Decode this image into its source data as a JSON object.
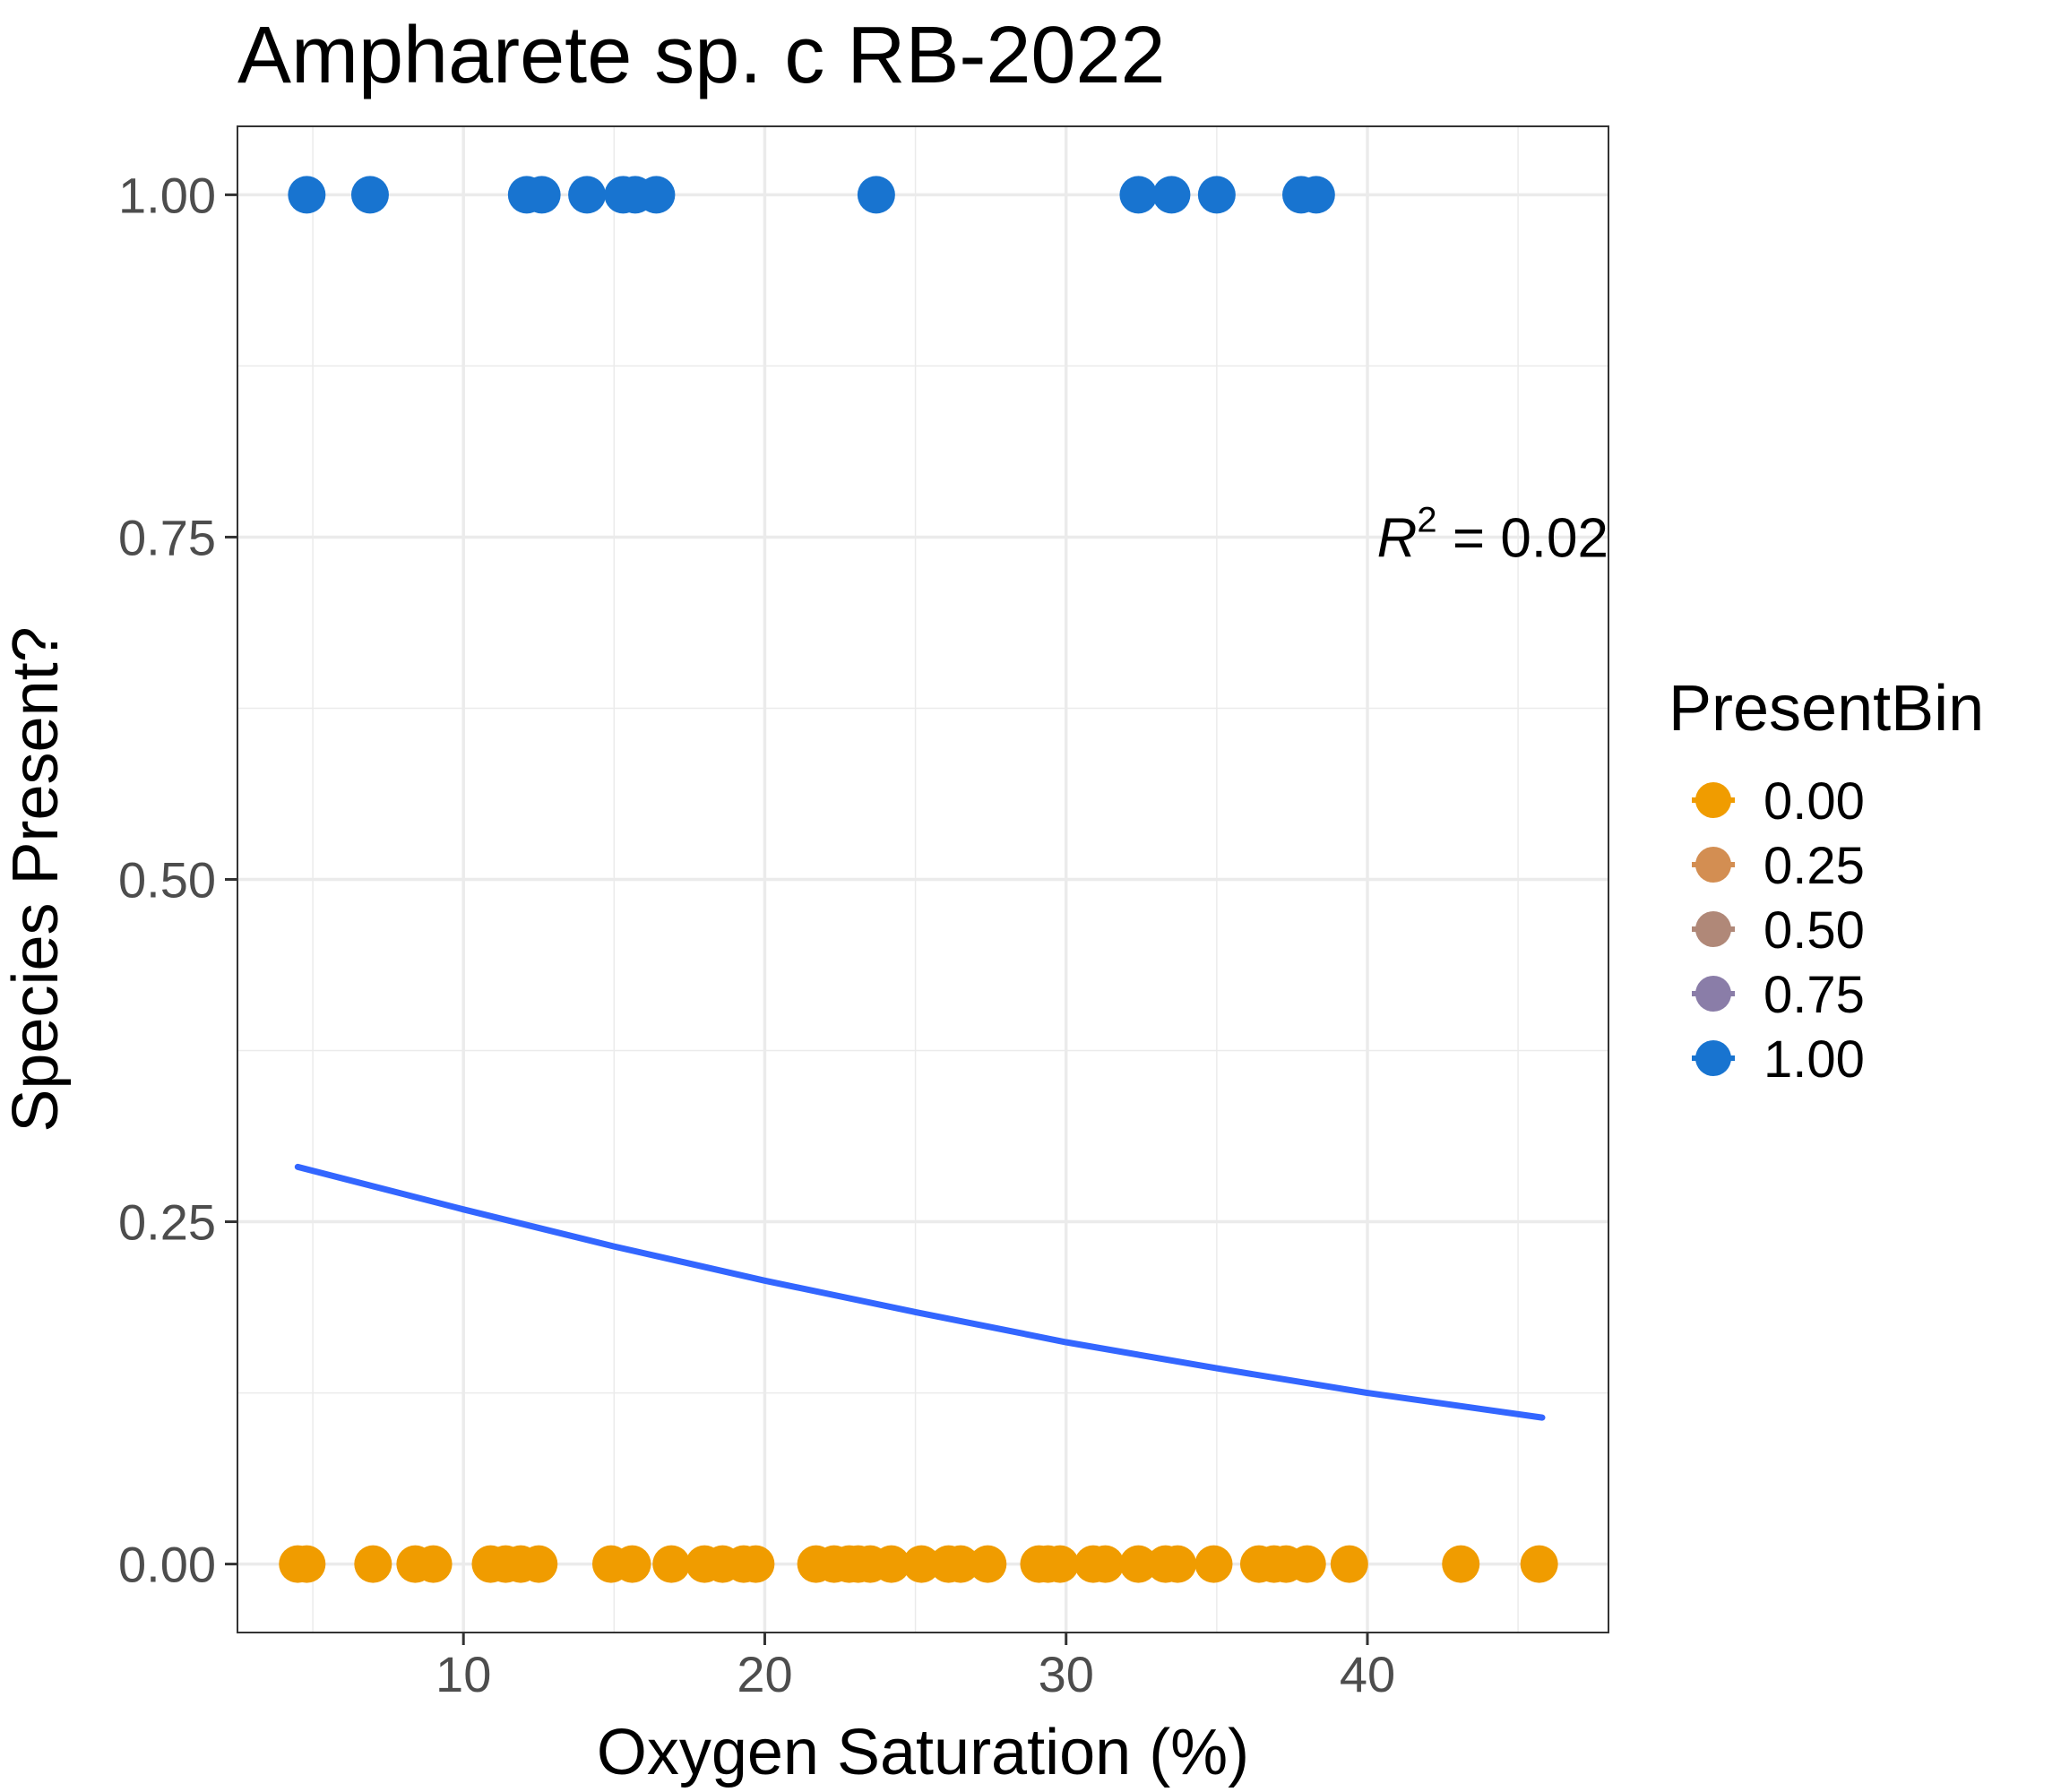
{
  "chart_data": {
    "type": "scatter",
    "title": "Ampharete sp. c RB-2022",
    "xlabel": "Oxygen Saturation (%)",
    "ylabel": "Species Present?",
    "xlim": [
      2.5,
      48
    ],
    "ylim": [
      -0.05,
      1.05
    ],
    "x_ticks": [
      10,
      20,
      30,
      40
    ],
    "x_tick_labels": [
      "10",
      "20",
      "30",
      "40"
    ],
    "y_ticks": [
      0,
      0.25,
      0.5,
      0.75,
      1
    ],
    "y_tick_labels": [
      "0.00",
      "0.25",
      "0.50",
      "0.75",
      "1.00"
    ],
    "grid": true,
    "legend": {
      "title": "PresentBin",
      "position": "right",
      "entries": [
        {
          "label": "0.00",
          "color": "#F09C00"
        },
        {
          "label": "0.25",
          "color": "#D38E52"
        },
        {
          "label": "0.50",
          "color": "#B08878"
        },
        {
          "label": "0.75",
          "color": "#8A7DA8"
        },
        {
          "label": "1.00",
          "color": "#1874D0"
        }
      ]
    },
    "annotation": {
      "lhs": "R",
      "sup": "2",
      "rhs": " = 0.02",
      "x": 48,
      "y": 0.75
    },
    "series": [
      {
        "color": "#1874D0",
        "points": [
          {
            "x": 4.8,
            "y": 1
          },
          {
            "x": 6.9,
            "y": 1
          },
          {
            "x": 12.1,
            "y": 1
          },
          {
            "x": 12.6,
            "y": 1
          },
          {
            "x": 14.1,
            "y": 1
          },
          {
            "x": 15.3,
            "y": 1
          },
          {
            "x": 15.7,
            "y": 1
          },
          {
            "x": 16.4,
            "y": 1
          },
          {
            "x": 23.7,
            "y": 1
          },
          {
            "x": 32.4,
            "y": 1
          },
          {
            "x": 33.5,
            "y": 1
          },
          {
            "x": 35.0,
            "y": 1
          },
          {
            "x": 37.8,
            "y": 1
          },
          {
            "x": 38.3,
            "y": 1
          }
        ]
      },
      {
        "color": "#F09C00",
        "points": [
          {
            "x": 4.5,
            "y": 0
          },
          {
            "x": 4.8,
            "y": 0
          },
          {
            "x": 7.0,
            "y": 0
          },
          {
            "x": 8.4,
            "y": 0
          },
          {
            "x": 9.0,
            "y": 0
          },
          {
            "x": 10.9,
            "y": 0
          },
          {
            "x": 11.4,
            "y": 0
          },
          {
            "x": 11.9,
            "y": 0
          },
          {
            "x": 12.5,
            "y": 0
          },
          {
            "x": 14.9,
            "y": 0
          },
          {
            "x": 15.6,
            "y": 0
          },
          {
            "x": 16.9,
            "y": 0
          },
          {
            "x": 18.0,
            "y": 0
          },
          {
            "x": 18.6,
            "y": 0
          },
          {
            "x": 19.3,
            "y": 0
          },
          {
            "x": 19.7,
            "y": 0
          },
          {
            "x": 21.7,
            "y": 0
          },
          {
            "x": 22.3,
            "y": 0
          },
          {
            "x": 22.8,
            "y": 0
          },
          {
            "x": 23.1,
            "y": 0
          },
          {
            "x": 23.5,
            "y": 0
          },
          {
            "x": 24.2,
            "y": 0
          },
          {
            "x": 25.2,
            "y": 0
          },
          {
            "x": 26.1,
            "y": 0
          },
          {
            "x": 26.5,
            "y": 0
          },
          {
            "x": 27.4,
            "y": 0
          },
          {
            "x": 29.1,
            "y": 0
          },
          {
            "x": 29.4,
            "y": 0
          },
          {
            "x": 29.8,
            "y": 0
          },
          {
            "x": 30.9,
            "y": 0
          },
          {
            "x": 31.3,
            "y": 0
          },
          {
            "x": 32.4,
            "y": 0
          },
          {
            "x": 33.3,
            "y": 0
          },
          {
            "x": 33.7,
            "y": 0
          },
          {
            "x": 34.9,
            "y": 0
          },
          {
            "x": 36.4,
            "y": 0
          },
          {
            "x": 36.9,
            "y": 0
          },
          {
            "x": 37.3,
            "y": 0
          },
          {
            "x": 38.0,
            "y": 0
          },
          {
            "x": 39.4,
            "y": 0
          },
          {
            "x": 43.1,
            "y": 0
          },
          {
            "x": 45.7,
            "y": 0
          }
        ]
      }
    ],
    "fit_line": {
      "color": "#3366FF",
      "points": [
        {
          "x": 4.5,
          "y": 0.29
        },
        {
          "x": 10,
          "y": 0.259
        },
        {
          "x": 15,
          "y": 0.232
        },
        {
          "x": 20,
          "y": 0.207
        },
        {
          "x": 25,
          "y": 0.184
        },
        {
          "x": 30,
          "y": 0.162
        },
        {
          "x": 35,
          "y": 0.143
        },
        {
          "x": 40,
          "y": 0.125
        },
        {
          "x": 45.8,
          "y": 0.107
        }
      ]
    }
  }
}
